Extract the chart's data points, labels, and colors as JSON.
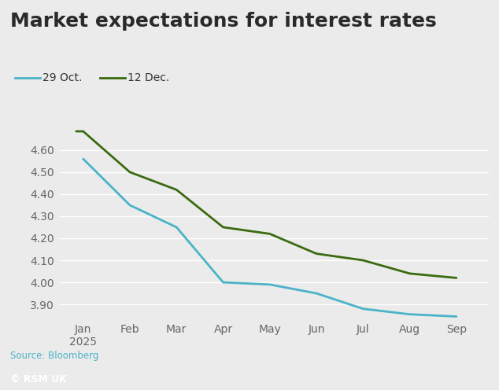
{
  "title": "Market expectations for interest rates",
  "legend_labels": [
    "29 Oct.",
    "12 Dec."
  ],
  "x_labels": [
    "Jan\n2025",
    "Feb",
    "Mar",
    "Apr",
    "May",
    "Jun",
    "Jul",
    "Aug",
    "Sep"
  ],
  "x_positions": [
    0,
    1,
    2,
    3,
    4,
    5,
    6,
    7,
    8
  ],
  "series_oct": {
    "label": "29 Oct.",
    "color": "#4ab3c8",
    "x": [
      0,
      1,
      2,
      3,
      4,
      5,
      6,
      7,
      8
    ],
    "y": [
      4.56,
      4.35,
      4.25,
      4.0,
      3.99,
      3.95,
      3.88,
      3.855,
      3.845
    ]
  },
  "series_dec": {
    "label": "12 Dec.",
    "color": "#3a6b10",
    "x": [
      -0.15,
      0,
      1,
      2,
      3,
      4,
      5,
      6,
      7,
      8
    ],
    "y": [
      4.685,
      4.685,
      4.5,
      4.42,
      4.25,
      4.22,
      4.13,
      4.1,
      4.04,
      4.02
    ]
  },
  "ylim": [
    3.83,
    4.75
  ],
  "yticks": [
    3.9,
    4.0,
    4.1,
    4.2,
    4.3,
    4.4,
    4.5,
    4.6
  ],
  "xlim": [
    -0.5,
    8.7
  ],
  "source_text": "Source: Bloomberg",
  "logo_text": "© RSM UK",
  "background_color": "#ebebeb",
  "plot_background_color": "#ebebeb",
  "grid_color": "#ffffff",
  "title_fontsize": 18,
  "axis_fontsize": 10,
  "legend_fontsize": 10,
  "source_fontsize": 8.5,
  "logo_fontsize": 9,
  "line_width": 2.0
}
